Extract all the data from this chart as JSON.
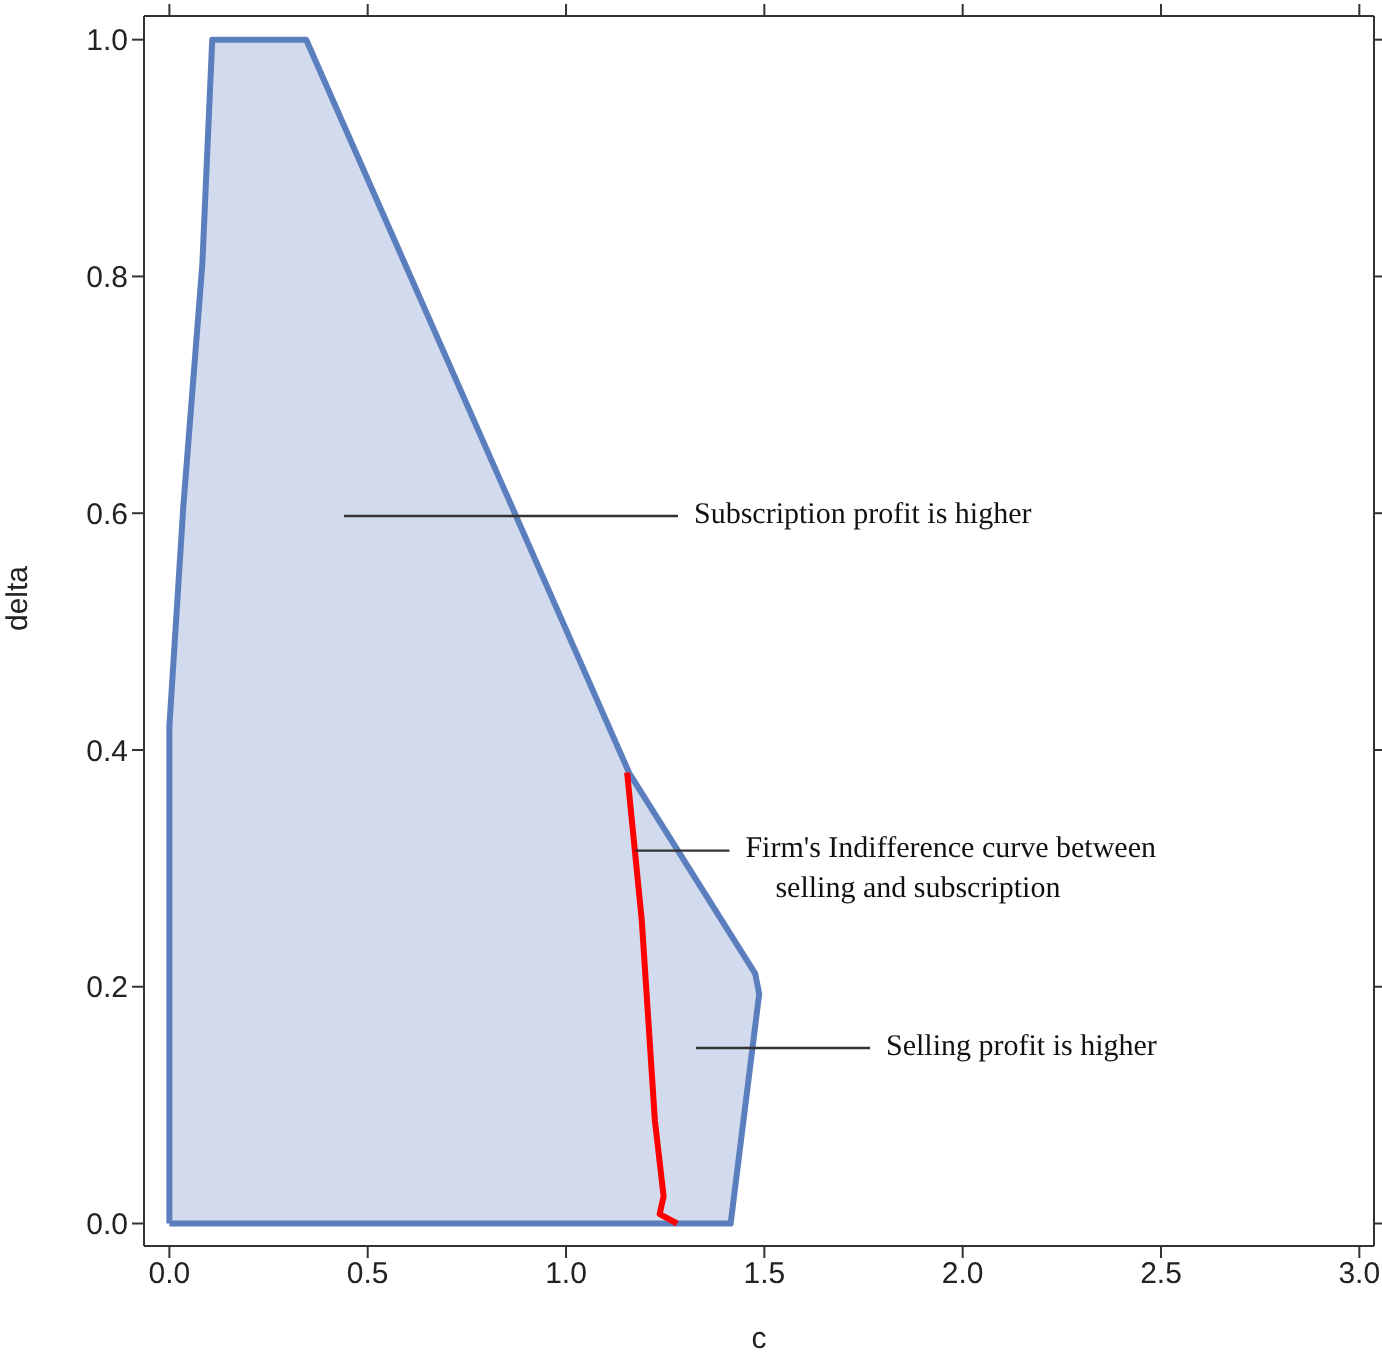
{
  "chart_data": {
    "type": "area",
    "xlabel": "c",
    "ylabel": "delta",
    "xlim": [
      -0.064,
      3.037
    ],
    "ylim": [
      -0.019,
      1.02
    ],
    "xticks": [
      {
        "value": 0,
        "label": "0.0"
      },
      {
        "value": 0.5,
        "label": "0.5"
      },
      {
        "value": 1,
        "label": "1.0"
      },
      {
        "value": 1.5,
        "label": "1.5"
      },
      {
        "value": 2,
        "label": "2.0"
      },
      {
        "value": 2.5,
        "label": "2.5"
      },
      {
        "value": 3,
        "label": "3.0"
      }
    ],
    "yticks": [
      {
        "value": 0,
        "label": "0.0"
      },
      {
        "value": 0.2,
        "label": "0.2"
      },
      {
        "value": 0.4,
        "label": "0.4"
      },
      {
        "value": 0.6,
        "label": "0.6"
      },
      {
        "value": 0.8,
        "label": "0.8"
      },
      {
        "value": 1,
        "label": "1.0"
      }
    ],
    "series": [
      {
        "color": "#5b7fbe",
        "x": [
          0,
          0,
          0,
          0.035,
          0.083,
          0.108,
          0.345,
          1.16,
          1.477,
          1.487,
          1.415,
          0
        ],
        "values": [
          0,
          0.357,
          0.42,
          0.605,
          0.81,
          1.0,
          1.0,
          0.38,
          0.211,
          0.194,
          0,
          0
        ]
      },
      {
        "type": "line",
        "color": "#ff0000",
        "x": [
          1.154,
          1.191,
          1.224,
          1.246,
          1.236,
          1.28
        ],
        "values": [
          0.381,
          0.256,
          0.087,
          0.023,
          0.008,
          0
        ]
      }
    ],
    "annotations": [
      "Subscription profit is higher",
      {
        "text": "Firm's Indifference curve between selling and subscription",
        "x": 1.175,
        "y": 0.315
      },
      "Selling profit is higher"
    ]
  }
}
